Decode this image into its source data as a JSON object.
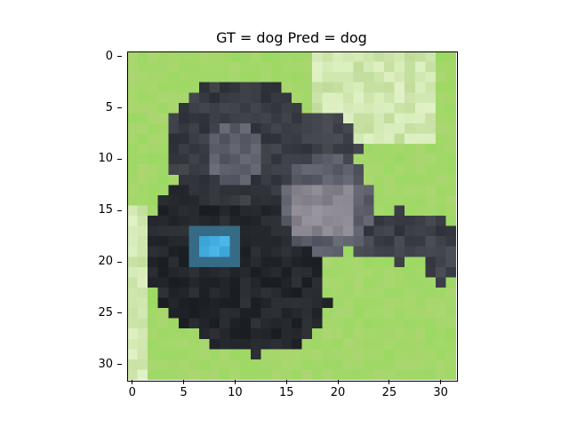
{
  "figure": {
    "title": "GT = dog Pred = dog"
  },
  "image": {
    "subject": "dog",
    "resolution": [
      32,
      32
    ],
    "colors": {
      "grass_light": "#b4df7a",
      "grass_mid": "#93d05a",
      "dog_dark": "#24272c",
      "dog_gray": "#5c5f69",
      "dog_light": "#8b8791",
      "collar_tag": "#45aee0",
      "background_pale": "#e3ecd3"
    }
  },
  "axes": {
    "x_ticks": [
      "0",
      "5",
      "10",
      "15",
      "20",
      "25",
      "30"
    ],
    "y_ticks": [
      "0",
      "5",
      "10",
      "15",
      "20",
      "25",
      "30"
    ],
    "x_range": [
      -0.5,
      31.5
    ],
    "y_range": [
      31.5,
      -0.5
    ]
  }
}
